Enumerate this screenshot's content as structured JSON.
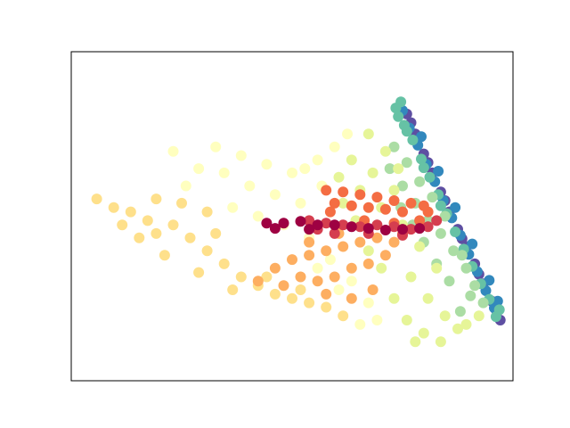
{
  "chart_data": {
    "type": "scatter",
    "title": "",
    "xlabel": "",
    "ylabel": "",
    "axes_ticks_visible": false,
    "grid": false,
    "legend": "none",
    "xlim": [
      -2.6,
      2.6
    ],
    "ylim": [
      -1.9,
      1.9
    ],
    "colormap": "Spectral",
    "groups": [
      {
        "color": "#5e4fa2",
        "points": [
          [
            1.35,
            1.18
          ],
          [
            1.45,
            0.95
          ],
          [
            1.55,
            0.72
          ],
          [
            1.65,
            0.5
          ],
          [
            1.75,
            0.28
          ],
          [
            1.85,
            0.05
          ],
          [
            1.95,
            -0.15
          ],
          [
            2.05,
            -0.35
          ],
          [
            2.15,
            -0.55
          ],
          [
            2.25,
            -0.78
          ],
          [
            2.35,
            -0.98
          ],
          [
            2.45,
            -1.2
          ],
          [
            1.4,
            1.08
          ],
          [
            1.6,
            0.62
          ],
          [
            1.8,
            0.18
          ],
          [
            2.0,
            -0.26
          ],
          [
            2.2,
            -0.67
          ],
          [
            2.4,
            -1.08
          ]
        ]
      },
      {
        "color": "#3288bd",
        "points": [
          [
            1.3,
            1.22
          ],
          [
            1.38,
            1.02
          ],
          [
            1.48,
            0.82
          ],
          [
            1.58,
            0.6
          ],
          [
            1.68,
            0.4
          ],
          [
            1.78,
            0.18
          ],
          [
            1.88,
            -0.02
          ],
          [
            1.98,
            -0.22
          ],
          [
            2.08,
            -0.44
          ],
          [
            2.18,
            -0.64
          ],
          [
            2.28,
            -0.86
          ],
          [
            2.38,
            -1.06
          ],
          [
            2.42,
            -0.98
          ],
          [
            2.32,
            -0.74
          ],
          [
            2.12,
            -0.32
          ],
          [
            1.92,
            0.1
          ],
          [
            1.72,
            0.52
          ],
          [
            1.52,
            0.92
          ]
        ]
      },
      {
        "color": "#66c2a5",
        "points": [
          [
            1.28,
            1.32
          ],
          [
            1.25,
            1.15
          ],
          [
            1.32,
            1.05
          ],
          [
            1.42,
            0.88
          ],
          [
            1.52,
            0.66
          ],
          [
            1.62,
            0.45
          ],
          [
            1.72,
            0.25
          ],
          [
            1.82,
            0.03
          ],
          [
            1.92,
            -0.18
          ],
          [
            2.02,
            -0.38
          ],
          [
            2.12,
            -0.58
          ],
          [
            2.22,
            -0.78
          ],
          [
            2.32,
            -0.96
          ],
          [
            2.44,
            -1.08
          ],
          [
            2.4,
            -1.16
          ],
          [
            1.22,
            1.25
          ],
          [
            1.35,
            0.98
          ],
          [
            1.55,
            0.56
          ],
          [
            1.75,
            0.12
          ]
        ]
      },
      {
        "color": "#abdda4",
        "points": [
          [
            1.15,
            0.55
          ],
          [
            1.3,
            0.35
          ],
          [
            1.45,
            0.15
          ],
          [
            1.6,
            -0.05
          ],
          [
            1.75,
            -0.2
          ],
          [
            1.9,
            -0.4
          ],
          [
            2.05,
            -0.6
          ],
          [
            2.15,
            -0.8
          ],
          [
            2.25,
            -1.0
          ],
          [
            1.2,
            0.8
          ],
          [
            1.35,
            0.62
          ],
          [
            1.5,
            0.4
          ],
          [
            1.65,
            0.22
          ],
          [
            1.8,
            0.0
          ],
          [
            2.0,
            -0.45
          ],
          [
            2.1,
            -0.92
          ],
          [
            1.98,
            -1.1
          ],
          [
            1.85,
            -0.75
          ],
          [
            1.7,
            -0.55
          ],
          [
            1.55,
            -0.3
          ],
          [
            1.42,
            -0.1
          ],
          [
            1.28,
            0.1
          ]
        ]
      },
      {
        "color": "#e6f598",
        "points": [
          [
            0.9,
            0.95
          ],
          [
            1.1,
            0.75
          ],
          [
            0.7,
            0.65
          ],
          [
            0.95,
            0.5
          ],
          [
            1.2,
            0.3
          ],
          [
            0.8,
            0.3
          ],
          [
            1.05,
            0.1
          ],
          [
            1.3,
            -0.1
          ],
          [
            0.55,
            0.45
          ],
          [
            0.75,
            -0.05
          ],
          [
            1.5,
            -0.35
          ],
          [
            1.7,
            -0.6
          ],
          [
            1.4,
            -0.7
          ],
          [
            1.6,
            -0.95
          ],
          [
            1.8,
            -1.15
          ],
          [
            1.95,
            -1.3
          ],
          [
            1.2,
            -0.95
          ],
          [
            1.35,
            -1.2
          ],
          [
            1.55,
            -1.35
          ],
          [
            1.05,
            -0.6
          ],
          [
            0.9,
            -0.4
          ],
          [
            0.6,
            0.15
          ],
          [
            1.25,
            0.55
          ],
          [
            1.45,
            -1.45
          ],
          [
            1.75,
            -1.45
          ],
          [
            2.05,
            -1.25
          ],
          [
            2.2,
            -1.15
          ]
        ]
      },
      {
        "color": "#ffffbf",
        "points": [
          [
            -0.9,
            0.8
          ],
          [
            -0.6,
            0.7
          ],
          [
            -0.3,
            0.6
          ],
          [
            0.0,
            0.5
          ],
          [
            0.3,
            0.65
          ],
          [
            0.5,
            0.8
          ],
          [
            -0.8,
            0.5
          ],
          [
            -0.5,
            0.35
          ],
          [
            -0.2,
            0.25
          ],
          [
            0.1,
            0.15
          ],
          [
            0.35,
            0.35
          ],
          [
            -1.1,
            0.55
          ],
          [
            -0.7,
            0.1
          ],
          [
            -0.4,
            0.0
          ],
          [
            -0.1,
            -0.1
          ],
          [
            0.2,
            -0.25
          ],
          [
            0.45,
            -0.5
          ],
          [
            0.7,
            -0.75
          ],
          [
            0.9,
            -1.0
          ],
          [
            1.0,
            -1.2
          ],
          [
            0.3,
            -0.6
          ],
          [
            0.55,
            -0.85
          ],
          [
            0.8,
            -1.25
          ],
          [
            -1.4,
            0.75
          ],
          [
            -1.25,
            0.35
          ],
          [
            0.65,
            0.95
          ],
          [
            0.15,
            0.55
          ]
        ]
      },
      {
        "color": "#fee08b",
        "points": [
          [
            -2.3,
            0.2
          ],
          [
            -2.1,
            0.1
          ],
          [
            -1.9,
            0.05
          ],
          [
            -1.7,
            -0.05
          ],
          [
            -1.6,
            0.2
          ],
          [
            -1.4,
            -0.1
          ],
          [
            -1.2,
            -0.25
          ],
          [
            -1.0,
            -0.4
          ],
          [
            -0.8,
            -0.55
          ],
          [
            -0.6,
            -0.7
          ],
          [
            -0.4,
            -0.8
          ],
          [
            -0.2,
            -0.9
          ],
          [
            0.0,
            -0.95
          ],
          [
            0.2,
            -1.0
          ],
          [
            0.4,
            -1.05
          ],
          [
            0.6,
            -1.15
          ],
          [
            -1.8,
            -0.25
          ],
          [
            -1.5,
            -0.45
          ],
          [
            -1.1,
            -0.65
          ],
          [
            -0.7,
            -0.85
          ],
          [
            -1.3,
            0.15
          ],
          [
            -1.0,
            0.05
          ],
          [
            -2.0,
            -0.1
          ],
          [
            -0.3,
            -0.7
          ],
          [
            0.1,
            -0.85
          ],
          [
            -1.6,
            -0.2
          ],
          [
            -0.9,
            -0.2
          ]
        ]
      },
      {
        "color": "#fdae61",
        "points": [
          [
            -0.2,
            -0.6
          ],
          [
            0.0,
            -0.5
          ],
          [
            0.2,
            -0.45
          ],
          [
            0.4,
            -0.4
          ],
          [
            0.6,
            -0.35
          ],
          [
            0.8,
            -0.3
          ],
          [
            1.0,
            -0.25
          ],
          [
            1.2,
            -0.3
          ],
          [
            0.1,
            -0.7
          ],
          [
            0.3,
            -0.75
          ],
          [
            0.5,
            -0.7
          ],
          [
            0.7,
            -0.6
          ],
          [
            0.9,
            -0.55
          ],
          [
            1.1,
            -0.45
          ],
          [
            -0.1,
            -0.8
          ],
          [
            0.4,
            -0.9
          ],
          [
            0.7,
            -0.95
          ],
          [
            0.95,
            -0.85
          ],
          [
            0.2,
            -0.3
          ],
          [
            0.55,
            -0.2
          ],
          [
            -0.4,
            -0.75
          ],
          [
            1.3,
            -0.2
          ]
        ]
      },
      {
        "color": "#f46d43",
        "points": [
          [
            0.4,
            0.3
          ],
          [
            0.6,
            0.28
          ],
          [
            0.8,
            0.25
          ],
          [
            1.0,
            0.22
          ],
          [
            1.2,
            0.18
          ],
          [
            1.4,
            0.15
          ],
          [
            1.6,
            0.05
          ],
          [
            0.5,
            0.15
          ],
          [
            0.7,
            0.12
          ],
          [
            0.9,
            0.1
          ],
          [
            1.1,
            0.08
          ],
          [
            1.3,
            0.05
          ],
          [
            1.5,
            -0.05
          ],
          [
            0.45,
            0.05
          ],
          [
            1.55,
            0.12
          ],
          [
            1.2,
            -0.08
          ],
          [
            0.85,
            -0.05
          ]
        ]
      },
      {
        "color": "#d53e4f",
        "points": [
          [
            0.2,
            -0.05
          ],
          [
            0.4,
            -0.08
          ],
          [
            0.6,
            -0.1
          ],
          [
            0.8,
            -0.12
          ],
          [
            1.0,
            -0.1
          ],
          [
            1.2,
            -0.12
          ],
          [
            1.4,
            -0.15
          ],
          [
            1.6,
            -0.12
          ],
          [
            0.5,
            -0.2
          ],
          [
            0.9,
            -0.2
          ],
          [
            1.3,
            -0.22
          ],
          [
            1.7,
            -0.05
          ],
          [
            0.3,
            -0.15
          ]
        ]
      },
      {
        "color": "#9e0142",
        "points": [
          [
            -0.3,
            -0.08
          ],
          [
            -0.1,
            -0.08
          ],
          [
            0.1,
            -0.06
          ],
          [
            0.3,
            -0.1
          ],
          [
            0.7,
            -0.12
          ],
          [
            0.9,
            -0.14
          ],
          [
            1.1,
            -0.16
          ],
          [
            1.3,
            -0.15
          ],
          [
            1.5,
            -0.14
          ],
          [
            0.5,
            -0.1
          ],
          [
            -0.2,
            -0.14
          ],
          [
            0.2,
            -0.15
          ]
        ]
      }
    ]
  }
}
